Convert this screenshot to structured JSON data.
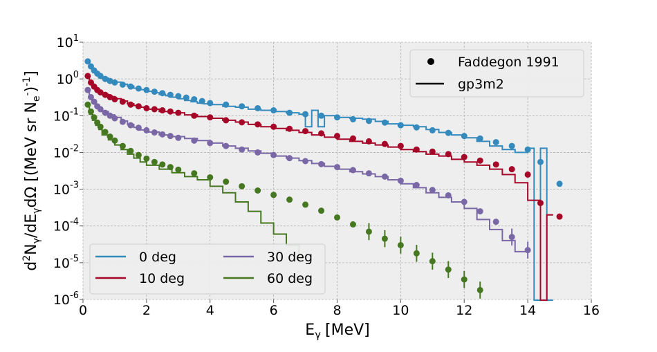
{
  "chart_data": {
    "type": "line",
    "title": "",
    "x_axis": {
      "label": "E",
      "label_sub": "γ",
      "label_unit": "[MeV]",
      "lim": [
        0,
        16
      ],
      "ticks": [
        "0",
        "2",
        "4",
        "6",
        "8",
        "10",
        "12",
        "14",
        "16"
      ]
    },
    "y_axis": {
      "label_prefix": "d",
      "label_sup2": "2",
      "label_N": "N",
      "label_sub1": "γ",
      "label_mid": "/dE",
      "label_sub2": "γ",
      "label_end": "dΩ  [(MeV sr N",
      "label_sub3": "e",
      "label_sup3": "-",
      "label_close": ")",
      "label_sup4": "-1",
      "label_close2": "]",
      "scale": "log",
      "lim": [
        1e-06,
        10
      ],
      "ticks": [
        {
          "base": "10",
          "exp": "1"
        },
        {
          "base": "10",
          "exp": "0"
        },
        {
          "base": "10",
          "exp": "-1"
        },
        {
          "base": "10",
          "exp": "-2"
        },
        {
          "base": "10",
          "exp": "-3"
        },
        {
          "base": "10",
          "exp": "-4"
        },
        {
          "base": "10",
          "exp": "-5"
        },
        {
          "base": "10",
          "exp": "-6"
        }
      ]
    },
    "grid": true,
    "series": [
      {
        "name": "0 deg",
        "color": "#348ABD",
        "marker_x": [
          0.15,
          0.25,
          0.35,
          0.45,
          0.55,
          0.7,
          0.85,
          1.0,
          1.25,
          1.5,
          1.75,
          2.0,
          2.25,
          2.5,
          2.75,
          3.0,
          3.25,
          3.5,
          3.75,
          4.0,
          4.5,
          5.0,
          5.5,
          6.0,
          6.5,
          7.0,
          7.5,
          8.0,
          8.5,
          9.0,
          9.5,
          10.0,
          10.5,
          11.0,
          11.5,
          12.0,
          12.5,
          13.0,
          13.5,
          14.0,
          14.4,
          15.0
        ],
        "marker_y": [
          3.0,
          2.2,
          1.7,
          1.4,
          1.2,
          1.0,
          0.88,
          0.8,
          0.7,
          0.62,
          0.55,
          0.5,
          0.45,
          0.41,
          0.37,
          0.34,
          0.31,
          0.28,
          0.25,
          0.22,
          0.2,
          0.18,
          0.16,
          0.14,
          0.12,
          0.11,
          0.1,
          0.09,
          0.08,
          0.072,
          0.065,
          0.055,
          0.048,
          0.04,
          0.034,
          0.028,
          0.024,
          0.019,
          0.015,
          0.012,
          0.0055,
          0.0014
        ],
        "hist_edges": [
          0.1,
          0.2,
          0.3,
          0.4,
          0.5,
          0.6,
          0.8,
          1.0,
          1.2,
          1.4,
          1.6,
          1.8,
          2.0,
          2.2,
          2.4,
          2.6,
          2.8,
          3.0,
          3.2,
          3.4,
          3.6,
          3.8,
          4.0,
          4.4,
          4.8,
          5.2,
          5.6,
          6.0,
          6.4,
          6.8,
          7.0,
          7.2,
          7.4,
          7.6,
          8.0,
          8.4,
          8.8,
          9.2,
          9.6,
          10.0,
          10.4,
          10.8,
          11.2,
          11.6,
          12.0,
          12.4,
          12.8,
          13.2,
          13.6,
          14.0,
          14.2,
          14.4,
          14.6,
          14.8
        ],
        "hist_y": [
          3.3,
          2.4,
          1.9,
          1.5,
          1.3,
          1.05,
          0.9,
          0.82,
          0.72,
          0.64,
          0.56,
          0.51,
          0.46,
          0.42,
          0.38,
          0.35,
          0.32,
          0.29,
          0.26,
          0.24,
          0.22,
          0.21,
          0.2,
          0.18,
          0.17,
          0.15,
          0.14,
          0.13,
          0.12,
          0.11,
          0.05,
          0.14,
          0.05,
          0.1,
          0.09,
          0.085,
          0.08,
          0.07,
          0.06,
          0.055,
          0.05,
          0.042,
          0.035,
          0.03,
          0.025,
          0.02,
          0.015,
          0.012,
          0.01,
          0.013,
          5e-07,
          0.013,
          5e-07,
          0.003
        ]
      },
      {
        "name": "10 deg",
        "color": "#A60628",
        "marker_x": [
          0.15,
          0.25,
          0.35,
          0.45,
          0.55,
          0.7,
          0.85,
          1.0,
          1.25,
          1.5,
          1.75,
          2.0,
          2.25,
          2.5,
          2.75,
          3.0,
          3.5,
          4.0,
          4.5,
          5.0,
          5.5,
          6.0,
          6.5,
          7.0,
          7.5,
          8.0,
          8.5,
          9.0,
          9.5,
          10.0,
          10.5,
          11.0,
          11.5,
          12.0,
          12.5,
          13.0,
          13.5,
          14.0,
          14.4,
          15.0
        ],
        "marker_y": [
          1.2,
          0.8,
          0.62,
          0.5,
          0.43,
          0.37,
          0.32,
          0.28,
          0.24,
          0.2,
          0.18,
          0.16,
          0.15,
          0.14,
          0.13,
          0.12,
          0.1,
          0.09,
          0.075,
          0.066,
          0.058,
          0.05,
          0.044,
          0.038,
          0.033,
          0.028,
          0.024,
          0.02,
          0.017,
          0.015,
          0.012,
          0.0105,
          0.009,
          0.0075,
          0.006,
          0.0047,
          0.0035,
          0.0025,
          0.00042,
          0.00018
        ],
        "hist_edges": [
          0.1,
          0.2,
          0.3,
          0.4,
          0.5,
          0.6,
          0.8,
          1.0,
          1.2,
          1.4,
          1.6,
          1.8,
          2.0,
          2.4,
          2.8,
          3.2,
          3.6,
          4.0,
          4.4,
          4.8,
          5.2,
          5.6,
          6.0,
          6.4,
          6.8,
          7.2,
          7.6,
          8.0,
          8.4,
          8.8,
          9.2,
          9.6,
          10.0,
          10.4,
          10.8,
          11.2,
          11.6,
          12.0,
          12.4,
          12.8,
          13.2,
          13.6,
          14.0,
          14.4,
          14.6,
          14.8
        ],
        "hist_y": [
          1.3,
          0.85,
          0.65,
          0.52,
          0.44,
          0.38,
          0.33,
          0.29,
          0.25,
          0.21,
          0.19,
          0.17,
          0.15,
          0.13,
          0.12,
          0.105,
          0.095,
          0.085,
          0.075,
          0.067,
          0.058,
          0.05,
          0.045,
          0.04,
          0.035,
          0.03,
          0.026,
          0.023,
          0.02,
          0.018,
          0.016,
          0.014,
          0.012,
          0.0105,
          0.009,
          0.008,
          0.0065,
          0.0055,
          0.0045,
          0.0035,
          0.0025,
          0.0015,
          0.0005,
          5e-07,
          0.0002
        ]
      },
      {
        "name": "30 deg",
        "color": "#7A68A6",
        "marker_x": [
          0.15,
          0.25,
          0.35,
          0.45,
          0.55,
          0.7,
          0.85,
          1.0,
          1.25,
          1.5,
          1.75,
          2.0,
          2.25,
          2.5,
          2.75,
          3.0,
          3.5,
          4.0,
          4.5,
          5.0,
          5.5,
          6.0,
          6.5,
          7.0,
          7.5,
          8.0,
          8.5,
          9.0,
          9.5,
          10.0,
          10.5,
          11.0,
          11.5,
          12.0,
          12.5,
          13.0,
          13.5,
          14.0
        ],
        "marker_y": [
          0.5,
          0.32,
          0.24,
          0.18,
          0.15,
          0.12,
          0.1,
          0.085,
          0.068,
          0.055,
          0.047,
          0.04,
          0.035,
          0.031,
          0.028,
          0.025,
          0.021,
          0.018,
          0.015,
          0.012,
          0.01,
          0.0085,
          0.007,
          0.0058,
          0.0048,
          0.004,
          0.0033,
          0.0027,
          0.0022,
          0.0017,
          0.0013,
          0.00095,
          0.00068,
          0.00045,
          0.00025,
          0.00013,
          5e-05,
          2.2e-05
        ],
        "hist_edges": [
          0.1,
          0.2,
          0.3,
          0.4,
          0.5,
          0.6,
          0.8,
          1.0,
          1.2,
          1.4,
          1.6,
          1.8,
          2.0,
          2.4,
          2.8,
          3.2,
          3.6,
          4.0,
          4.4,
          4.8,
          5.2,
          5.6,
          6.0,
          6.4,
          6.8,
          7.2,
          7.6,
          8.0,
          8.4,
          8.8,
          9.2,
          9.6,
          10.0,
          10.4,
          10.8,
          11.2,
          11.6,
          12.0,
          12.4,
          12.8,
          13.2,
          13.6,
          14.0
        ],
        "hist_y": [
          0.55,
          0.35,
          0.25,
          0.19,
          0.16,
          0.13,
          0.105,
          0.09,
          0.072,
          0.058,
          0.048,
          0.041,
          0.036,
          0.03,
          0.027,
          0.024,
          0.021,
          0.018,
          0.015,
          0.013,
          0.011,
          0.0095,
          0.008,
          0.007,
          0.006,
          0.005,
          0.0042,
          0.0035,
          0.003,
          0.0026,
          0.0022,
          0.0018,
          0.0014,
          0.0011,
          0.0008,
          0.0006,
          0.00045,
          0.0003,
          0.00015,
          8e-05,
          4e-05,
          2e-05
        ]
      },
      {
        "name": "60 deg",
        "color": "#467821",
        "marker_x": [
          0.15,
          0.25,
          0.35,
          0.45,
          0.55,
          0.7,
          0.85,
          1.0,
          1.25,
          1.5,
          1.75,
          2.0,
          2.25,
          2.5,
          2.75,
          3.0,
          3.5,
          4.0,
          4.5,
          5.0,
          5.5,
          6.0,
          6.5,
          7.0,
          7.5,
          8.0,
          8.5,
          9.0,
          9.5,
          10.0,
          10.5,
          11.0,
          11.5,
          12.0,
          12.5
        ],
        "marker_y": [
          0.2,
          0.13,
          0.09,
          0.065,
          0.05,
          0.036,
          0.027,
          0.021,
          0.015,
          0.011,
          0.0085,
          0.0068,
          0.0055,
          0.0047,
          0.004,
          0.0034,
          0.0027,
          0.0021,
          0.0016,
          0.0012,
          0.00092,
          0.0007,
          0.00052,
          0.00038,
          0.00026,
          0.00017,
          0.00011,
          7e-05,
          4.5e-05,
          3e-05,
          1.8e-05,
          1.1e-05,
          6.5e-06,
          3.5e-06,
          1.8e-06
        ],
        "hist_edges": [
          0.1,
          0.2,
          0.3,
          0.4,
          0.5,
          0.6,
          0.8,
          1.0,
          1.2,
          1.4,
          1.6,
          1.8,
          2.0,
          2.4,
          2.8,
          3.2,
          3.6,
          4.0,
          4.4,
          4.8,
          5.2,
          5.6,
          6.0,
          6.4,
          6.8,
          7.0
        ],
        "hist_y": [
          0.18,
          0.11,
          0.075,
          0.055,
          0.042,
          0.03,
          0.022,
          0.016,
          0.012,
          0.009,
          0.007,
          0.0055,
          0.0045,
          0.0035,
          0.0028,
          0.0022,
          0.0018,
          0.0012,
          0.0008,
          0.00045,
          0.00025,
          0.00012,
          6e-05,
          3e-05,
          1.5e-05
        ]
      }
    ],
    "style_legend": {
      "position": "upper right",
      "entries": [
        {
          "label": "Faddegon 1991",
          "kind": "marker"
        },
        {
          "label": "gp3m2",
          "kind": "line"
        }
      ]
    },
    "series_legend": {
      "position": "lower left",
      "columns": 2
    }
  }
}
